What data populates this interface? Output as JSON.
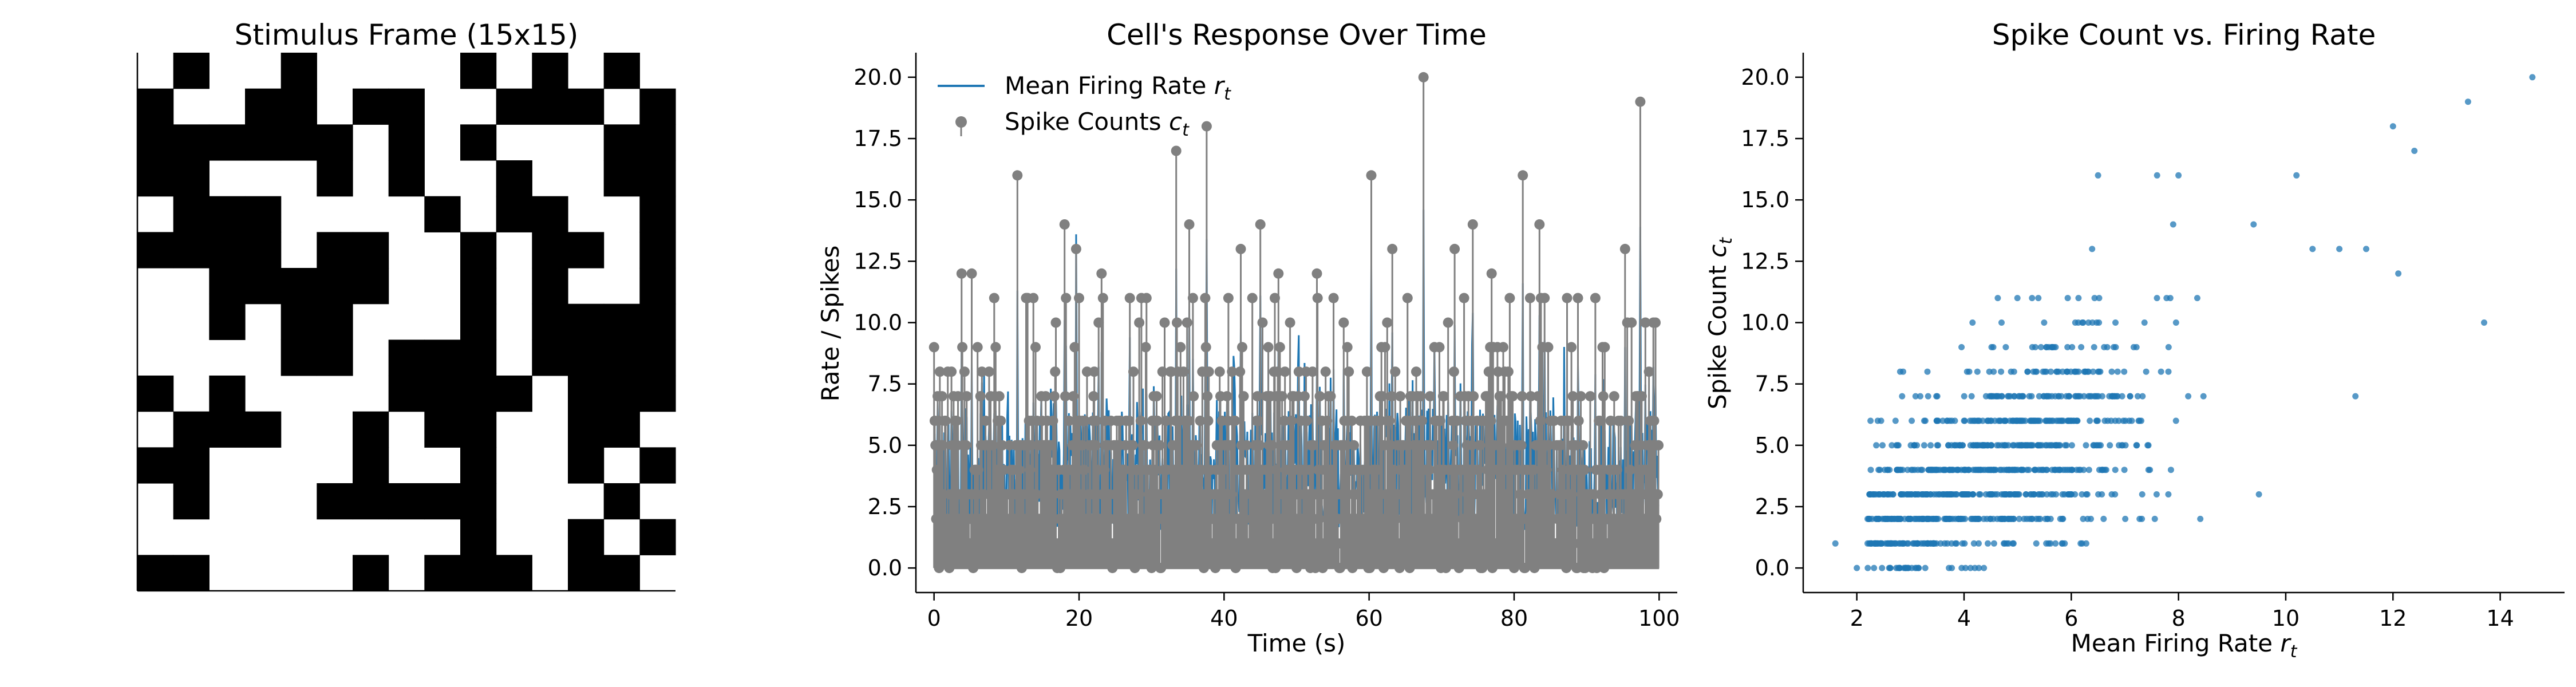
{
  "colors": {
    "rate_line": "#1f77b4",
    "spike_stem": "#808080",
    "scatter_point": "#1f77b4",
    "pixel_on": "#000000",
    "pixel_off": "#ffffff"
  },
  "chart_data": [
    {
      "type": "heatmap",
      "title": "Stimulus Frame (15x15)",
      "rows": 15,
      "cols": 15,
      "colormap": "binary (1 = black, 0 = white)",
      "grid": [
        [
          0,
          1,
          0,
          0,
          1,
          0,
          0,
          0,
          0,
          1,
          0,
          1,
          0,
          1,
          0
        ],
        [
          1,
          0,
          0,
          1,
          1,
          0,
          1,
          1,
          0,
          0,
          1,
          1,
          1,
          0,
          1
        ],
        [
          1,
          1,
          1,
          1,
          1,
          1,
          0,
          1,
          0,
          1,
          0,
          0,
          0,
          1,
          1
        ],
        [
          1,
          1,
          0,
          0,
          0,
          1,
          0,
          1,
          0,
          0,
          1,
          0,
          0,
          1,
          1
        ],
        [
          0,
          1,
          1,
          1,
          0,
          0,
          0,
          0,
          1,
          0,
          1,
          1,
          0,
          0,
          1
        ],
        [
          1,
          1,
          1,
          1,
          0,
          1,
          1,
          0,
          0,
          1,
          0,
          1,
          1,
          0,
          1
        ],
        [
          0,
          0,
          1,
          1,
          1,
          1,
          1,
          0,
          0,
          1,
          0,
          1,
          0,
          0,
          1
        ],
        [
          0,
          0,
          1,
          0,
          1,
          1,
          0,
          0,
          0,
          1,
          0,
          1,
          1,
          1,
          1
        ],
        [
          0,
          0,
          0,
          0,
          1,
          1,
          0,
          1,
          1,
          1,
          0,
          1,
          1,
          1,
          1
        ],
        [
          1,
          0,
          1,
          0,
          0,
          0,
          0,
          1,
          1,
          1,
          1,
          0,
          1,
          1,
          1
        ],
        [
          0,
          1,
          1,
          1,
          0,
          0,
          1,
          0,
          1,
          1,
          0,
          0,
          1,
          1,
          0
        ],
        [
          1,
          1,
          0,
          0,
          0,
          0,
          1,
          0,
          0,
          1,
          0,
          0,
          1,
          0,
          1
        ],
        [
          0,
          1,
          0,
          0,
          0,
          1,
          1,
          1,
          1,
          1,
          0,
          0,
          0,
          1,
          0
        ],
        [
          0,
          0,
          0,
          0,
          0,
          0,
          0,
          0,
          0,
          1,
          0,
          0,
          1,
          0,
          1
        ],
        [
          1,
          1,
          0,
          0,
          0,
          0,
          1,
          0,
          1,
          1,
          1,
          0,
          1,
          1,
          0
        ]
      ]
    },
    {
      "type": "line",
      "title": "Cell's Response Over Time",
      "xlabel": "Time (s)",
      "ylabel": "Rate / Spikes",
      "xlim": [
        -2.5,
        102.5
      ],
      "ylim": [
        -1,
        21
      ],
      "xticks": [
        0,
        20,
        40,
        60,
        80,
        100
      ],
      "xtick_labels": [
        "0",
        "20",
        "40",
        "60",
        "80",
        "100"
      ],
      "yticks": [
        0,
        2.5,
        5,
        7.5,
        10,
        12.5,
        15,
        17.5,
        20
      ],
      "ytick_labels": [
        "0.0",
        "2.5",
        "5.0",
        "7.5",
        "10.0",
        "12.5",
        "15.0",
        "17.5",
        "20.0"
      ],
      "legend_placement": "upper-left",
      "grid": false,
      "time_step": 0.1,
      "bins": 1000,
      "series": [
        {
          "name": "Mean Firing Rate",
          "name_sub": "t",
          "name_var": "r",
          "style": "line",
          "color": "#1f77b4"
        },
        {
          "name": "Spike Counts",
          "name_sub": "t",
          "name_var": "c",
          "style": "stem",
          "color": "#808080"
        }
      ],
      "peaks": [
        {
          "t": 0.5,
          "rate": 6.8,
          "count": 7
        },
        {
          "t": 3.8,
          "rate": 9.1,
          "count": 12
        },
        {
          "t": 5.2,
          "rate": 8.4,
          "count": 12
        },
        {
          "t": 11.5,
          "rate": 11.3,
          "count": 16
        },
        {
          "t": 18.0,
          "rate": 10.1,
          "count": 14
        },
        {
          "t": 19.6,
          "rate": 13.6,
          "count": 13
        },
        {
          "t": 23.1,
          "rate": 8.8,
          "count": 12
        },
        {
          "t": 27.0,
          "rate": 9.4,
          "count": 11
        },
        {
          "t": 33.4,
          "rate": 12.2,
          "count": 17
        },
        {
          "t": 35.2,
          "rate": 10.7,
          "count": 14
        },
        {
          "t": 37.6,
          "rate": 13.4,
          "count": 18
        },
        {
          "t": 42.3,
          "rate": 9.8,
          "count": 13
        },
        {
          "t": 45.0,
          "rate": 11.1,
          "count": 14
        },
        {
          "t": 47.5,
          "rate": 9.2,
          "count": 12
        },
        {
          "t": 52.8,
          "rate": 8.6,
          "count": 12
        },
        {
          "t": 55.1,
          "rate": 8.1,
          "count": 11
        },
        {
          "t": 60.3,
          "rate": 12.4,
          "count": 16
        },
        {
          "t": 63.2,
          "rate": 9.6,
          "count": 13
        },
        {
          "t": 67.5,
          "rate": 14.6,
          "count": 20
        },
        {
          "t": 71.8,
          "rate": 9.9,
          "count": 13
        },
        {
          "t": 74.3,
          "rate": 10.4,
          "count": 14
        },
        {
          "t": 76.9,
          "rate": 8.7,
          "count": 12
        },
        {
          "t": 81.2,
          "rate": 11.6,
          "count": 16
        },
        {
          "t": 83.5,
          "rate": 10.3,
          "count": 14
        },
        {
          "t": 88.8,
          "rate": 8.3,
          "count": 11
        },
        {
          "t": 91.2,
          "rate": 7.9,
          "count": 11
        },
        {
          "t": 95.3,
          "rate": 9.0,
          "count": 13
        },
        {
          "t": 97.4,
          "rate": 13.9,
          "count": 19
        },
        {
          "t": 99.2,
          "rate": 8.2,
          "count": 10
        }
      ],
      "baseline_rate_range": [
        1.5,
        6.5
      ]
    },
    {
      "type": "scatter",
      "title": "Spike Count vs. Firing Rate",
      "xlabel": "Mean Firing Rate",
      "xlabel_var": "r",
      "xlabel_sub": "t",
      "ylabel": "Spike Count",
      "ylabel_var": "c",
      "ylabel_sub": "t",
      "xlim": [
        1.0,
        15.2
      ],
      "ylim": [
        -1,
        21
      ],
      "xticks": [
        2,
        4,
        6,
        8,
        10,
        12,
        14
      ],
      "xtick_labels": [
        "2",
        "4",
        "6",
        "8",
        "10",
        "12",
        "14"
      ],
      "yticks": [
        0,
        2.5,
        5,
        7.5,
        10,
        12.5,
        15,
        17.5,
        20
      ],
      "ytick_labels": [
        "0.0",
        "2.5",
        "5.0",
        "7.5",
        "10.0",
        "12.5",
        "15.0",
        "17.5",
        "20.0"
      ],
      "grid": false,
      "point_count": 1000,
      "outliers": [
        {
          "x": 14.6,
          "y": 20
        },
        {
          "x": 13.4,
          "y": 19
        },
        {
          "x": 12.0,
          "y": 18
        },
        {
          "x": 12.4,
          "y": 17
        },
        {
          "x": 6.5,
          "y": 16
        },
        {
          "x": 7.6,
          "y": 16
        },
        {
          "x": 8.0,
          "y": 16
        },
        {
          "x": 10.2,
          "y": 16
        },
        {
          "x": 9.4,
          "y": 14
        },
        {
          "x": 7.9,
          "y": 14
        },
        {
          "x": 13.7,
          "y": 10
        },
        {
          "x": 11.3,
          "y": 7
        },
        {
          "x": 10.5,
          "y": 13
        },
        {
          "x": 11.0,
          "y": 13
        },
        {
          "x": 11.5,
          "y": 13
        },
        {
          "x": 12.1,
          "y": 12
        },
        {
          "x": 1.6,
          "y": 1
        },
        {
          "x": 2.0,
          "y": 0
        },
        {
          "x": 9.5,
          "y": 3
        }
      ]
    }
  ]
}
